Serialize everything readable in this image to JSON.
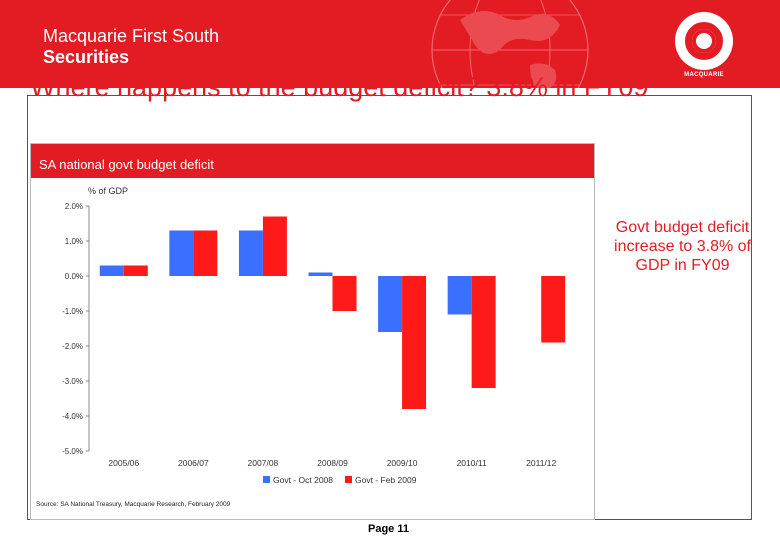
{
  "header": {
    "brand_line1": "Macquarie First South",
    "brand_line2": "Securities",
    "logo_text": "MACQUARIE",
    "brand_color": "#e31b23"
  },
  "slide": {
    "title": "Where happens to the budget deficit? 3.8% in FY09",
    "note": "Govt budget deficit increase to 3.8% of GDP in FY09",
    "page": "Page 11"
  },
  "chart": {
    "header_title": "SA national govt budget deficit",
    "source": "Source: SA National Treasury, Macquarie Research, February 2009"
  },
  "chart_data": {
    "type": "bar",
    "title": "SA national govt budget deficit",
    "ylabel": "% of GDP",
    "xlabel": "",
    "categories": [
      "2005/06",
      "2006/07",
      "2007/08",
      "2008/09",
      "2009/10",
      "2010/11",
      "2011/12"
    ],
    "series": [
      {
        "name": "Govt - Oct 2008",
        "color": "#3b6fff",
        "values": [
          0.3,
          1.3,
          1.3,
          0.1,
          -1.6,
          -1.1,
          null
        ]
      },
      {
        "name": "Govt - Feb 2009",
        "color": "#ff1a1a",
        "values": [
          0.3,
          1.3,
          1.7,
          -1.0,
          -3.8,
          -3.2,
          -1.9
        ]
      }
    ],
    "ylim": [
      -5.0,
      2.0
    ],
    "yticks": [
      "2.0%",
      "1.0%",
      "0.0%",
      "-1.0%",
      "-2.0%",
      "-3.0%",
      "-4.0%",
      "-5.0%"
    ],
    "ytick_values": [
      2,
      1,
      0,
      -1,
      -2,
      -3,
      -4,
      -5
    ],
    "grid": false,
    "legend_position": "bottom"
  }
}
